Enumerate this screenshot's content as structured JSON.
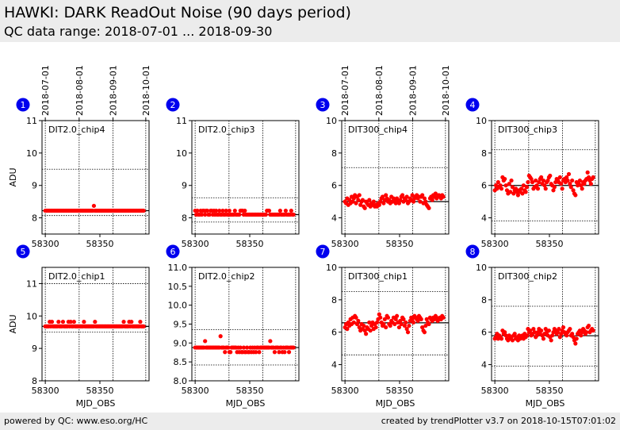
{
  "header": {
    "title": "HAWKI: DARK ReadOut Noise (90 days period)",
    "subtitle": "QC data range: 2018-07-01 ... 2018-09-30"
  },
  "footer": {
    "left": "powered by QC: www.eso.org/HC",
    "right": "created by trendPlotter v3.7 on 2018-10-15T07:01:02"
  },
  "date_ticks": {
    "labels": [
      "2018-07-01",
      "2018-08-01",
      "2018-09-01",
      "2018-10-01"
    ],
    "mjd": [
      58300,
      58331,
      58362,
      58392
    ]
  },
  "colors": {
    "data": "#ff0000",
    "badge": "#0000ee",
    "ref": "#000000"
  },
  "chart_data": [
    {
      "type": "scatter",
      "panel": "1",
      "label": "DIT2.0_chip4",
      "ylabel": "ADU",
      "xlabel": "",
      "xlim": [
        58297,
        58395
      ],
      "ylim": [
        7.5,
        11
      ],
      "yticks": [
        8,
        9,
        10,
        11
      ],
      "xticks": [
        58300,
        58350
      ],
      "ref": 8.22,
      "hlines": [
        8.07,
        9.5
      ],
      "y": [
        8.22,
        8.22,
        8.22,
        8.22,
        8.22,
        8.22,
        8.22,
        8.22,
        8.22,
        8.22,
        8.22,
        8.22,
        8.22,
        8.22,
        8.22,
        8.22,
        8.22,
        8.22,
        8.22,
        8.22,
        8.22,
        8.22,
        8.22,
        8.22,
        8.22,
        8.22,
        8.22,
        8.22,
        8.22,
        8.22,
        8.22,
        8.22,
        8.22,
        8.22,
        8.22,
        8.22,
        8.22,
        8.22,
        8.22,
        8.22,
        8.22,
        8.22,
        8.22,
        8.22,
        8.37,
        8.22,
        8.22,
        8.22,
        8.22,
        8.22,
        8.22,
        8.22,
        8.22,
        8.22,
        8.22,
        8.22,
        8.22,
        8.22,
        8.22,
        8.22,
        8.22,
        8.22,
        8.22,
        8.22,
        8.22,
        8.22,
        8.22,
        8.22,
        8.22,
        8.22,
        8.22,
        8.22,
        8.22,
        8.22,
        8.22,
        8.22,
        8.22,
        8.22,
        8.22,
        8.22,
        8.22,
        8.22,
        8.22,
        8.22,
        8.22,
        8.22,
        8.22,
        8.22,
        8.22,
        8.22
      ]
    },
    {
      "type": "scatter",
      "panel": "2",
      "label": "DIT2.0_chip3",
      "ylabel": "",
      "xlabel": "",
      "xlim": [
        58297,
        58395
      ],
      "ylim": [
        7.5,
        11
      ],
      "yticks": [
        8,
        9,
        10,
        11
      ],
      "xticks": [
        58300,
        58350
      ],
      "ref": 8.1,
      "hlines": [
        7.87,
        8.62
      ],
      "y": [
        8.22,
        8.1,
        8.22,
        8.1,
        8.1,
        8.22,
        8.1,
        8.22,
        8.22,
        8.1,
        8.22,
        8.22,
        8.1,
        8.1,
        8.22,
        8.22,
        8.1,
        8.22,
        8.1,
        8.22,
        8.1,
        8.1,
        8.22,
        8.1,
        8.1,
        8.22,
        8.1,
        8.1,
        8.22,
        8.1,
        8.1,
        8.22,
        8.1,
        8.1,
        8.1,
        8.1,
        8.22,
        8.1,
        8.1,
        8.1,
        8.1,
        8.22,
        8.22,
        8.22,
        8.1,
        8.22,
        8.1,
        8.1,
        8.1,
        8.1,
        8.1,
        8.1,
        8.1,
        8.1,
        8.1,
        8.1,
        8.1,
        8.1,
        8.1,
        8.1,
        8.1,
        8.1,
        8.1,
        8.1,
        8.1,
        8.22,
        8.22,
        8.22,
        8.1,
        8.1,
        8.1,
        8.1,
        8.1,
        8.1,
        8.1,
        8.1,
        8.1,
        8.22,
        8.1,
        8.1,
        8.1,
        8.1,
        8.22,
        8.1,
        8.1,
        8.1,
        8.1,
        8.22,
        8.1,
        8.1
      ]
    },
    {
      "type": "scatter",
      "panel": "3",
      "label": "DIT300_chip4",
      "ylabel": "",
      "xlabel": "",
      "xlim": [
        58297,
        58395
      ],
      "ylim": [
        3,
        10
      ],
      "yticks": [
        4,
        6,
        8,
        10
      ],
      "xticks": [
        58300,
        58350
      ],
      "ref": 5.0,
      "hlines": [
        3.0,
        7.1
      ],
      "y": [
        5.0,
        4.9,
        5.2,
        4.8,
        5.1,
        4.9,
        5.3,
        5.0,
        5.2,
        5.4,
        4.9,
        5.3,
        5.1,
        5.4,
        4.8,
        5.0,
        5.1,
        4.7,
        4.6,
        5.0,
        4.9,
        4.8,
        5.1,
        4.7,
        4.9,
        4.8,
        5.0,
        4.7,
        4.8,
        4.7,
        4.9,
        4.8,
        5.0,
        5.2,
        5.3,
        4.9,
        5.1,
        5.4,
        5.2,
        5.0,
        5.1,
        4.9,
        5.3,
        5.0,
        5.2,
        5.1,
        4.9,
        5.2,
        5.0,
        4.9,
        5.1,
        5.3,
        5.4,
        5.0,
        5.2,
        5.1,
        5.3,
        4.9,
        5.0,
        5.2,
        5.1,
        5.4,
        5.0,
        5.2,
        5.3,
        5.4,
        5.2,
        5.3,
        5.0,
        5.3,
        5.4,
        4.9,
        5.2,
        5.0,
        4.8,
        4.7,
        4.6,
        5.2,
        5.3,
        5.1,
        5.4,
        5.3,
        5.5,
        5.2,
        5.3,
        5.4,
        5.3,
        5.2,
        5.4,
        5.3
      ]
    },
    {
      "type": "scatter",
      "panel": "4",
      "label": "DIT300_chip3",
      "ylabel": "",
      "xlabel": "",
      "xlim": [
        58297,
        58395
      ],
      "ylim": [
        3,
        10
      ],
      "yticks": [
        4,
        6,
        8,
        10
      ],
      "xticks": [
        58300,
        58350
      ],
      "ref": 6.0,
      "hlines": [
        3.8,
        8.2
      ],
      "y": [
        5.7,
        6.0,
        5.8,
        6.2,
        5.9,
        6.0,
        5.8,
        6.5,
        6.3,
        6.4,
        6.0,
        5.7,
        5.5,
        6.1,
        5.6,
        6.3,
        5.9,
        5.5,
        5.7,
        5.8,
        5.6,
        5.4,
        5.7,
        5.6,
        5.8,
        5.5,
        6.0,
        5.7,
        5.6,
        5.9,
        6.2,
        6.6,
        6.5,
        6.4,
        6.2,
        5.8,
        5.9,
        6.3,
        6.0,
        5.8,
        6.2,
        6.4,
        6.5,
        6.1,
        6.3,
        6.0,
        5.8,
        6.2,
        6.3,
        6.5,
        6.6,
        6.1,
        6.0,
        5.7,
        5.9,
        6.2,
        6.4,
        6.3,
        6.2,
        6.5,
        6.1,
        5.8,
        6.3,
        6.4,
        6.2,
        6.5,
        6.3,
        6.7,
        6.1,
        5.9,
        6.3,
        5.7,
        5.5,
        5.4,
        6.2,
        6.0,
        6.1,
        6.3,
        6.0,
        5.8,
        6.2,
        6.1,
        6.3,
        6.4,
        6.8,
        6.5,
        6.3,
        6.1,
        6.4,
        6.5
      ]
    },
    {
      "type": "scatter",
      "panel": "5",
      "label": "DIT2.0_chip1",
      "ylabel": "ADU",
      "xlabel": "MJD_OBS",
      "xlim": [
        58297,
        58395
      ],
      "ylim": [
        8,
        11.5
      ],
      "yticks": [
        8,
        9,
        10,
        11
      ],
      "xticks": [
        58300,
        58350
      ],
      "ref": 9.68,
      "hlines": [
        9.5,
        11.0
      ],
      "y": [
        9.68,
        9.68,
        9.68,
        9.68,
        9.82,
        9.68,
        9.82,
        9.68,
        9.68,
        9.68,
        9.68,
        9.68,
        9.82,
        9.68,
        9.68,
        9.68,
        9.82,
        9.68,
        9.68,
        9.68,
        9.68,
        9.82,
        9.68,
        9.82,
        9.68,
        9.68,
        9.82,
        9.68,
        9.68,
        9.68,
        9.68,
        9.68,
        9.68,
        9.68,
        9.68,
        9.82,
        9.68,
        9.68,
        9.68,
        9.68,
        9.68,
        9.68,
        9.68,
        9.68,
        9.68,
        9.82,
        9.68,
        9.68,
        9.68,
        9.68,
        9.68,
        9.68,
        9.68,
        9.68,
        9.68,
        9.68,
        9.68,
        9.68,
        9.68,
        9.68,
        9.68,
        9.68,
        9.68,
        9.68,
        9.68,
        9.68,
        9.68,
        9.68,
        9.68,
        9.68,
        9.68,
        9.82,
        9.68,
        9.68,
        9.68,
        9.68,
        9.82,
        9.68,
        9.82,
        9.68,
        9.68,
        9.68,
        9.68,
        9.68,
        9.68,
        9.68,
        9.82,
        9.68,
        9.68,
        9.68
      ]
    },
    {
      "type": "scatter",
      "panel": "6",
      "label": "DIT2.0_chip2",
      "ylabel": "",
      "xlabel": "MJD_OBS",
      "xlim": [
        58297,
        58395
      ],
      "ylim": [
        8.0,
        11.0
      ],
      "yticks": [
        8.0,
        8.5,
        9.0,
        9.5,
        10.0,
        10.5,
        11.0
      ],
      "xticks": [
        58300,
        58350
      ],
      "ref": 8.88,
      "hlines": [
        8.42,
        9.35
      ],
      "y": [
        8.88,
        8.88,
        8.88,
        8.88,
        8.88,
        8.88,
        8.88,
        8.88,
        8.88,
        9.05,
        8.88,
        8.88,
        8.88,
        8.88,
        8.88,
        8.88,
        8.88,
        8.88,
        8.88,
        8.88,
        8.88,
        8.88,
        8.88,
        9.18,
        8.88,
        8.88,
        8.88,
        8.76,
        8.88,
        8.88,
        8.88,
        8.76,
        8.76,
        8.88,
        8.88,
        8.88,
        8.88,
        8.88,
        8.76,
        8.88,
        8.76,
        8.88,
        8.76,
        8.76,
        8.88,
        8.76,
        8.76,
        8.88,
        8.76,
        8.76,
        8.88,
        8.76,
        8.88,
        8.76,
        8.88,
        8.76,
        8.88,
        8.88,
        8.76,
        8.88,
        8.88,
        8.88,
        8.88,
        8.88,
        8.88,
        8.88,
        8.88,
        8.88,
        9.05,
        8.88,
        8.88,
        8.88,
        8.76,
        8.88,
        8.88,
        8.88,
        8.76,
        8.88,
        8.88,
        8.76,
        8.88,
        8.76,
        8.88,
        8.88,
        8.88,
        8.76,
        8.88,
        8.88,
        8.88,
        8.88
      ]
    },
    {
      "type": "scatter",
      "panel": "7",
      "label": "DIT300_chip1",
      "ylabel": "",
      "xlabel": "MJD_OBS",
      "xlim": [
        58297,
        58395
      ],
      "ylim": [
        3,
        10
      ],
      "yticks": [
        4,
        6,
        8,
        10
      ],
      "xticks": [
        58300,
        58350
      ],
      "ref": 6.58,
      "hlines": [
        4.6,
        8.5
      ],
      "y": [
        6.3,
        6.5,
        6.2,
        6.6,
        6.4,
        6.8,
        6.5,
        6.9,
        6.6,
        7.0,
        6.9,
        6.5,
        6.7,
        6.3,
        6.1,
        6.5,
        6.2,
        6.4,
        6.1,
        5.9,
        6.3,
        6.2,
        6.6,
        6.1,
        6.4,
        6.6,
        6.2,
        6.5,
        6.3,
        6.6,
        6.8,
        7.1,
        6.9,
        6.6,
        6.4,
        6.5,
        6.8,
        6.3,
        7.0,
        6.9,
        6.5,
        6.4,
        6.7,
        6.6,
        6.9,
        6.5,
        6.8,
        7.0,
        6.6,
        6.3,
        6.7,
        6.5,
        6.9,
        6.8,
        6.4,
        6.6,
        6.2,
        6.0,
        6.4,
        6.7,
        6.9,
        6.8,
        6.6,
        7.0,
        6.9,
        6.8,
        6.7,
        7.0,
        6.9,
        6.8,
        6.3,
        6.1,
        6.0,
        6.4,
        6.8,
        6.6,
        6.5,
        6.9,
        6.8,
        6.7,
        6.9,
        6.8,
        7.0,
        6.9,
        6.7,
        6.8,
        6.9,
        6.8,
        7.0,
        6.9
      ]
    },
    {
      "type": "scatter",
      "panel": "8",
      "label": "DIT300_chip2",
      "ylabel": "",
      "xlabel": "MJD_OBS",
      "xlim": [
        58297,
        58395
      ],
      "ylim": [
        3,
        10
      ],
      "yticks": [
        4,
        6,
        8,
        10
      ],
      "xticks": [
        58300,
        58350
      ],
      "ref": 5.78,
      "hlines": [
        3.9,
        7.6
      ],
      "y": [
        5.6,
        5.7,
        5.9,
        5.6,
        5.8,
        5.7,
        5.6,
        6.1,
        5.9,
        6.0,
        5.8,
        5.6,
        5.5,
        5.8,
        5.6,
        5.7,
        5.5,
        5.8,
        5.9,
        5.6,
        5.7,
        5.5,
        5.8,
        5.6,
        5.7,
        5.8,
        5.6,
        5.9,
        5.7,
        5.8,
        6.2,
        6.0,
        6.1,
        5.8,
        5.9,
        6.2,
        6.0,
        5.7,
        5.8,
        6.0,
        6.2,
        5.9,
        6.1,
        5.8,
        5.6,
        5.9,
        6.2,
        6.0,
        5.8,
        6.1,
        5.7,
        5.5,
        5.8,
        6.0,
        6.2,
        6.1,
        5.9,
        6.0,
        6.2,
        5.7,
        5.9,
        6.1,
        6.3,
        6.0,
        5.9,
        5.8,
        6.0,
        6.1,
        6.2,
        5.8,
        5.9,
        5.7,
        5.5,
        5.3,
        5.6,
        5.9,
        6.0,
        6.1,
        5.8,
        6.0,
        6.2,
        6.1,
        5.9,
        6.0,
        6.3,
        6.4,
        6.0,
        6.1,
        6.2,
        6.1
      ]
    }
  ]
}
